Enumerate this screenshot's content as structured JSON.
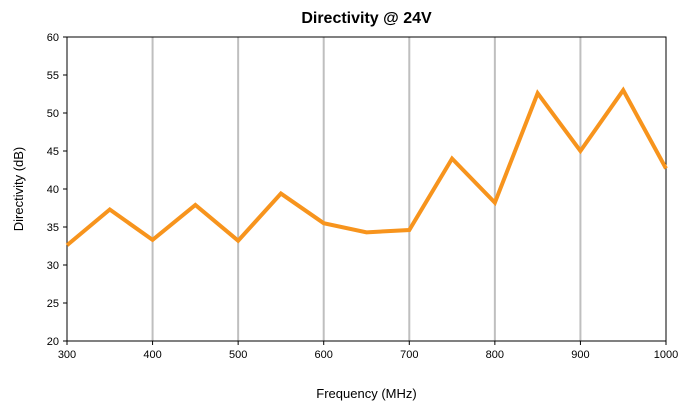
{
  "chart_data": {
    "type": "line",
    "title": "Directivity @  24V",
    "xlabel": "Frequency (MHz)",
    "ylabel": "Directivity (dB)",
    "xlim": [
      300,
      1000
    ],
    "ylim": [
      20,
      60
    ],
    "xticks": [
      "300",
      "400",
      "500",
      "600",
      "700",
      "800",
      "900",
      "1000"
    ],
    "yticks": [
      "20",
      "25",
      "30",
      "35",
      "40",
      "45",
      "50",
      "55",
      "60"
    ],
    "vertical_grid": true,
    "horizontal_grid": false,
    "legend": "none",
    "series": [
      {
        "color": "#F7941D",
        "x": [
          300,
          350,
          400,
          450,
          500,
          550,
          600,
          650,
          700,
          750,
          800,
          850,
          900,
          950,
          1000
        ],
        "y": [
          32.6,
          37.3,
          33.3,
          37.9,
          33.2,
          39.4,
          35.5,
          34.3,
          34.6,
          44.0,
          38.2,
          52.6,
          45.0,
          53.0,
          42.7
        ]
      }
    ]
  }
}
